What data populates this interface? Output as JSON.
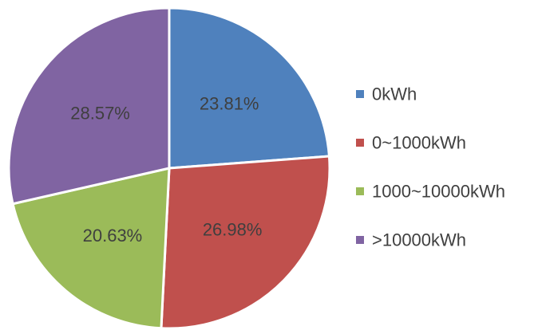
{
  "chart_data": {
    "type": "pie",
    "title": "",
    "categories": [
      "0kWh",
      "0~1000kWh",
      "1000~10000kWh",
      ">10000kWh"
    ],
    "values": [
      23.81,
      26.98,
      20.63,
      28.57
    ],
    "data_labels": [
      "23.81%",
      "26.98%",
      "20.63%",
      "28.57%"
    ],
    "colors": [
      "#4f81bd",
      "#c0504d",
      "#9bbb59",
      "#8064a2"
    ],
    "legend_position": "right",
    "start_angle": "12 o'clock",
    "direction": "clockwise"
  }
}
